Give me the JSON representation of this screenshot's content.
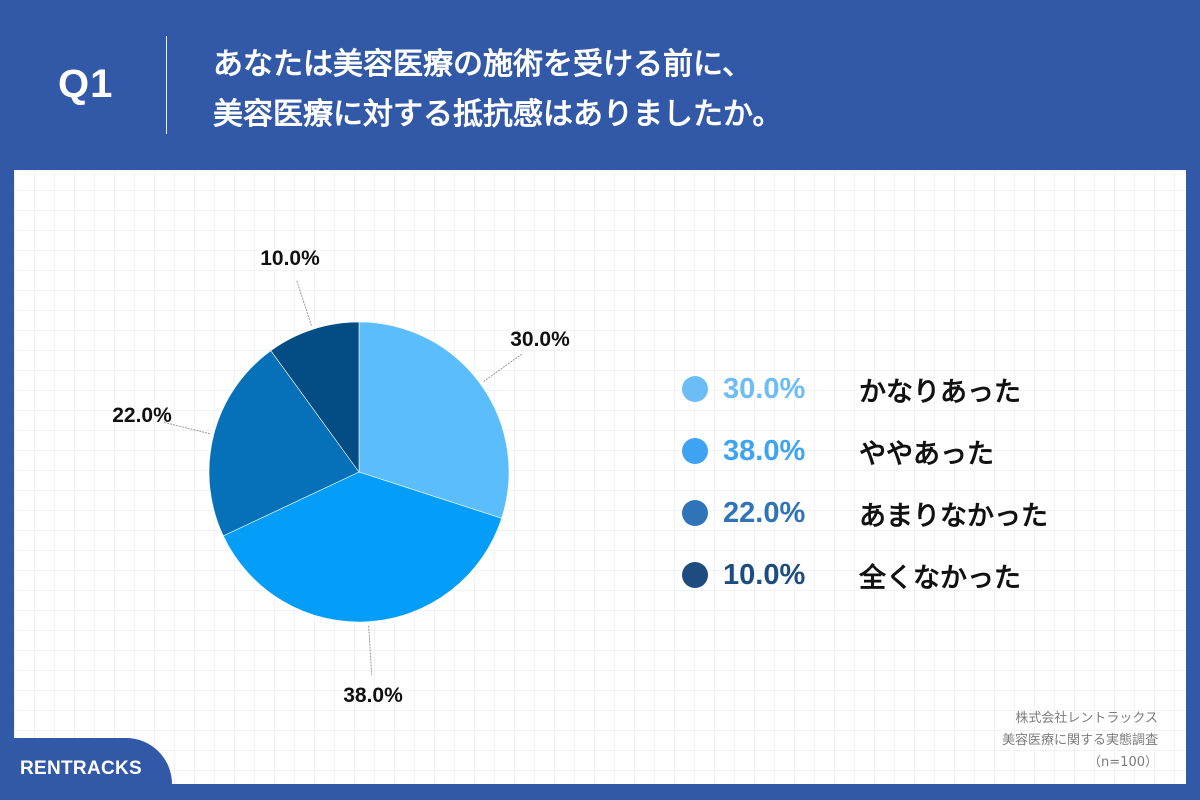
{
  "header": {
    "question_number": "Q1",
    "title_line1": "あなたは美容医療の施術を受ける前に、",
    "title_line2": "美容医療に対する抵抗感はありましたか。"
  },
  "footer": {
    "brand": "RENTRACKS",
    "source_line1": "株式会社レントラックス",
    "source_line2": "美容医療に関する実態調査",
    "source_line3": "（n=100）"
  },
  "colors": {
    "header_bg": "#3258a8",
    "slice_1": "#5bbdfb",
    "slice_2": "#049df8",
    "slice_3": "#0671b8",
    "slice_4": "#044c84",
    "legend_1": "#6cbdf6",
    "legend_2": "#3fa3f3",
    "legend_3": "#2f74b8",
    "legend_4": "#1d4c80"
  },
  "chart_data": {
    "type": "pie",
    "title": "あなたは美容医療の施術を受ける前に、美容医療に対する抵抗感はありましたか。",
    "categories": [
      "かなりあった",
      "ややあった",
      "あまりなかった",
      "全くなかった"
    ],
    "values": [
      30.0,
      38.0,
      22.0,
      10.0
    ],
    "unit": "%",
    "data_labels": [
      "30.0%",
      "38.0%",
      "22.0%",
      "10.0%"
    ],
    "start_angle": "12 o'clock, clockwise",
    "legend_position": "right",
    "sample_size": "n=100"
  },
  "legend": {
    "items": [
      {
        "value": "30.0%",
        "label": "かなりあった"
      },
      {
        "value": "38.0%",
        "label": "ややあった"
      },
      {
        "value": "22.0%",
        "label": "あまりなかった"
      },
      {
        "value": "10.0%",
        "label": "全くなかった"
      }
    ]
  }
}
